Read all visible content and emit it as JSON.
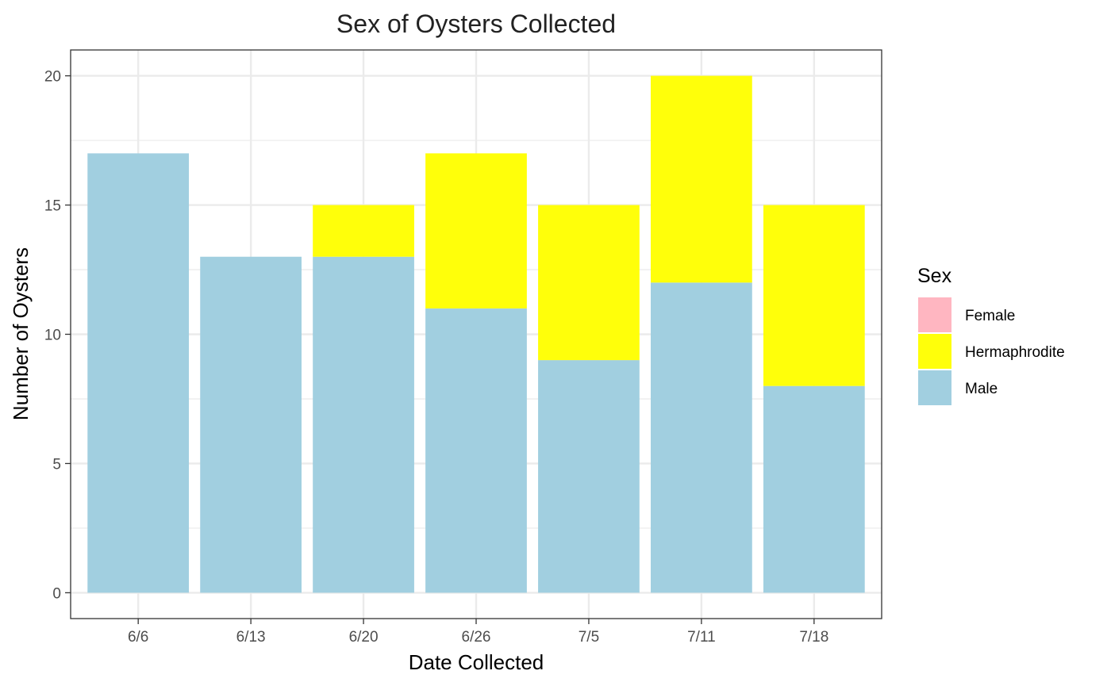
{
  "chart_data": {
    "type": "bar",
    "stacked": true,
    "title": "Sex of Oysters Collected",
    "xlabel": "Date Collected",
    "ylabel": "Number of Oysters",
    "categories": [
      "6/6",
      "6/13",
      "6/20",
      "6/26",
      "7/5",
      "7/11",
      "7/18"
    ],
    "series": [
      {
        "name": "Female",
        "color": "#FFB6C1",
        "values": [
          0,
          0,
          0,
          0,
          0,
          0,
          0
        ]
      },
      {
        "name": "Hermaphrodite",
        "color": "#FFFF0A",
        "values": [
          0,
          0,
          2,
          6,
          6,
          8,
          7
        ]
      },
      {
        "name": "Male",
        "color": "#A1CFE0",
        "values": [
          17,
          13,
          13,
          11,
          9,
          12,
          8
        ]
      }
    ],
    "stack_order_bottom_to_top": [
      "Male",
      "Hermaphrodite",
      "Female"
    ],
    "ylim": [
      -1,
      21
    ],
    "yticks": [
      0,
      5,
      10,
      15,
      20
    ],
    "grid": true,
    "legend": {
      "title": "Sex",
      "placement": "right"
    }
  }
}
